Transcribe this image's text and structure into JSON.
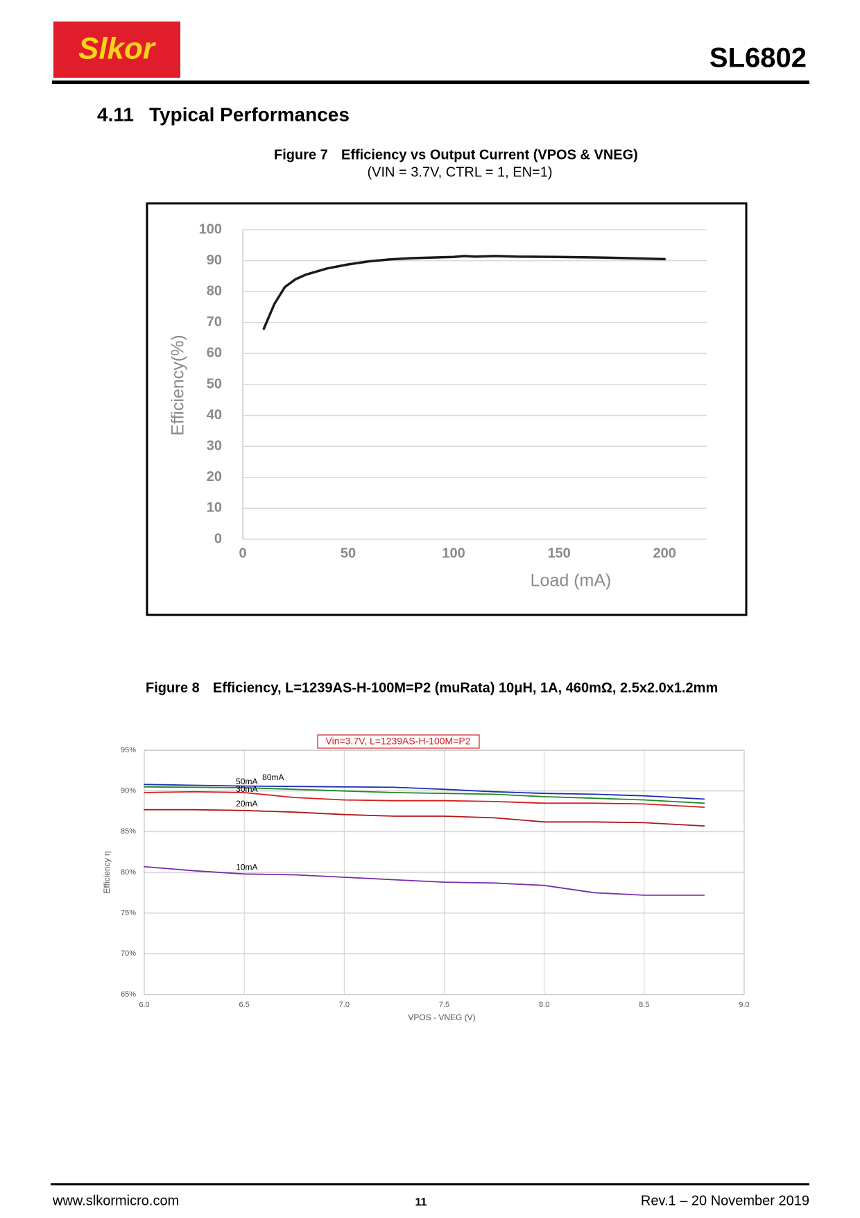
{
  "header": {
    "logo": "Slkor",
    "part": "SL6802"
  },
  "section": {
    "number": "4.11",
    "title": "Typical Performances"
  },
  "chart_data": [
    {
      "type": "line",
      "figure_label": "Figure 7",
      "title": "Efficiency vs Output Current (VPOS & VNEG)",
      "subtitle": "(VIN = 3.7V, CTRL = 1, EN=1)",
      "x_label": "Load (mA)",
      "y_label": "Efficiency(%)",
      "x": [
        10,
        15,
        20,
        25,
        30,
        40,
        50,
        60,
        70,
        80,
        90,
        100,
        105,
        110,
        120,
        130,
        150,
        170,
        190,
        200
      ],
      "values": [
        68,
        76,
        81.5,
        84,
        85.5,
        87.5,
        88.8,
        89.8,
        90.4,
        90.8,
        91,
        91.2,
        91.5,
        91.3,
        91.5,
        91.3,
        91.2,
        91,
        90.7,
        90.5
      ],
      "color": "#1a1a1a",
      "xlim": [
        0,
        220
      ],
      "ylim": [
        0,
        100
      ],
      "xticks": [
        0,
        50,
        100,
        150,
        200
      ],
      "yticks": [
        0,
        10,
        20,
        30,
        40,
        50,
        60,
        70,
        80,
        90,
        100
      ],
      "grid": true
    },
    {
      "type": "line",
      "figure_label": "Figure 8",
      "title": "Efficiency, L=1239AS-H-100M=P2 (muRata) 10μH, 1A, 460mΩ, 2.5x2.0x1.2mm",
      "subtitle": "Vin=3.7V, L=1239AS-H-100M=P2",
      "x_label": "VPOS - VNEG (V)",
      "y_label": "Efficiency η",
      "x": [
        6.0,
        6.25,
        6.5,
        6.75,
        7.0,
        7.25,
        7.5,
        7.75,
        8.0,
        8.25,
        8.5,
        8.8
      ],
      "series": [
        {
          "name": "80mA",
          "color": "#1f2fb0",
          "values": [
            90.8,
            90.7,
            90.6,
            90.55,
            90.5,
            90.45,
            90.2,
            89.9,
            89.7,
            89.6,
            89.4,
            89.0
          ]
        },
        {
          "name": "50mA",
          "color": "#1e8a2a",
          "values": [
            90.5,
            90.45,
            90.4,
            90.2,
            90.0,
            89.8,
            89.7,
            89.6,
            89.3,
            89.1,
            88.9,
            88.5
          ]
        },
        {
          "name": "30mA",
          "color": "#d42020",
          "values": [
            89.8,
            89.9,
            89.8,
            89.2,
            88.9,
            88.8,
            88.8,
            88.7,
            88.5,
            88.5,
            88.4,
            88.0
          ]
        },
        {
          "name": "20mA",
          "color": "#b01818",
          "values": [
            87.7,
            87.7,
            87.6,
            87.4,
            87.1,
            86.9,
            86.9,
            86.7,
            86.2,
            86.2,
            86.1,
            85.7
          ]
        },
        {
          "name": "10mA",
          "color": "#7a2fa8",
          "values": [
            80.7,
            80.2,
            79.8,
            79.7,
            79.4,
            79.1,
            78.8,
            78.7,
            78.4,
            77.5,
            77.2,
            77.2
          ]
        }
      ],
      "xlim": [
        6,
        9
      ],
      "ylim": [
        65,
        95
      ],
      "xticks": [
        {
          "value": 6,
          "label": "6.0"
        },
        {
          "value": 6.5,
          "label": "6.5"
        },
        {
          "value": 7,
          "label": "7.0"
        },
        {
          "value": 7.5,
          "label": "7.5"
        },
        {
          "value": 8,
          "label": "8.0"
        },
        {
          "value": 8.5,
          "label": "8.5"
        },
        {
          "value": 9,
          "label": "9.0"
        }
      ],
      "yticks": [
        {
          "value": 65,
          "label": "65%"
        },
        {
          "value": 70,
          "label": "70%"
        },
        {
          "value": 75,
          "label": "75%"
        },
        {
          "value": 80,
          "label": "80%"
        },
        {
          "value": 85,
          "label": "85%"
        },
        {
          "value": 90,
          "label": "90%"
        },
        {
          "value": 95,
          "label": "95%"
        }
      ],
      "grid": true
    }
  ],
  "footer": {
    "website": "www.slkormicro.com",
    "page": "11",
    "revision": "Rev.1 – 20 November 2019"
  }
}
